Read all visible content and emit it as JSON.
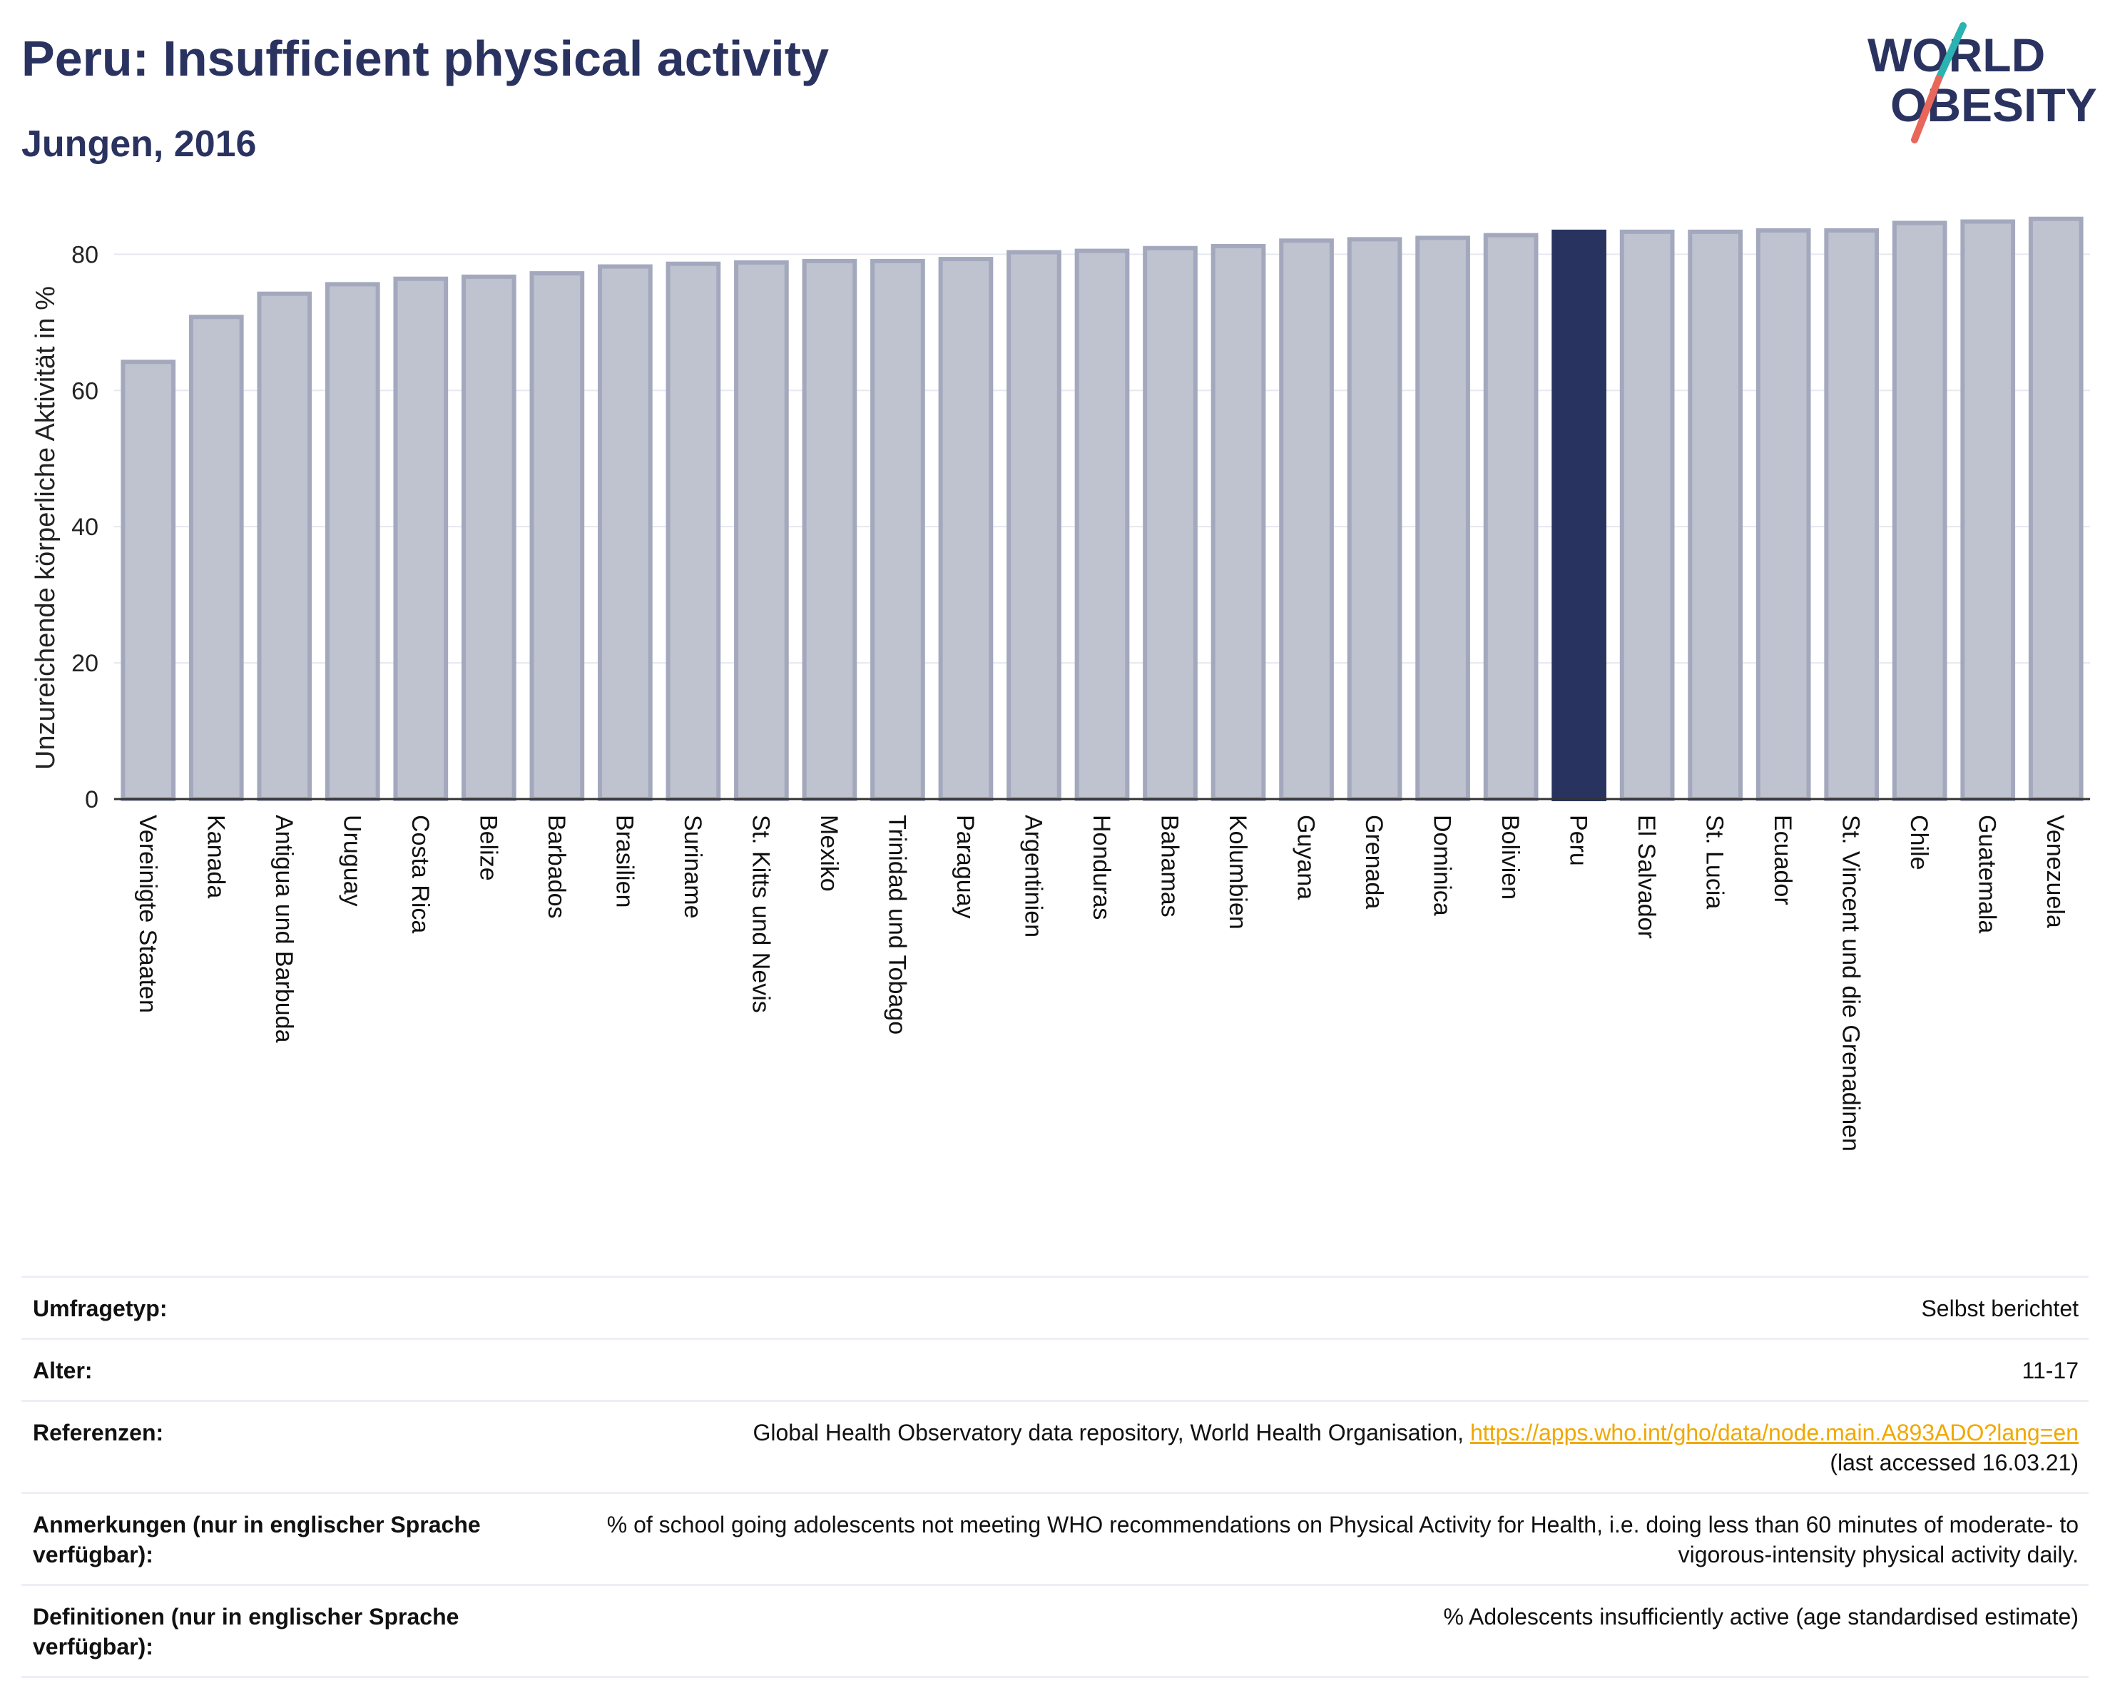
{
  "header": {
    "title": "Peru: Insufficient physical activity",
    "subtitle": "Jungen, 2016",
    "logo_top": "WORLD",
    "logo_bottom": "OBESITY"
  },
  "colors": {
    "title": "#2a3360",
    "bar": "#bfc2cf",
    "bar_stroke": "#a3a8bd",
    "highlight": "#283360",
    "link": "#f0a800",
    "logo_teal": "#2ab3b1",
    "logo_coral": "#e8675a"
  },
  "chart_data": {
    "type": "bar",
    "ylabel": "Unzureichende körperliche Aktivität in %",
    "ylim": [
      0,
      88
    ],
    "yticks": [
      0,
      20,
      40,
      60,
      80
    ],
    "grid": true,
    "highlight": "Peru",
    "categories": [
      "Vereinigte Staaten",
      "Kanada",
      "Antigua und Barbuda",
      "Uruguay",
      "Costa Rica",
      "Belize",
      "Barbados",
      "Brasilien",
      "Suriname",
      "St. Kitts und Nevis",
      "Mexiko",
      "Trinidad und Tobago",
      "Paraguay",
      "Argentinien",
      "Honduras",
      "Bahamas",
      "Kolumbien",
      "Guyana",
      "Grenada",
      "Dominica",
      "Bolivien",
      "Peru",
      "El Salvador",
      "St. Lucia",
      "Ecuador",
      "St. Vincent und die Grenadinen",
      "Chile",
      "Guatemala",
      "Venezuela"
    ],
    "values": [
      64.2,
      70.8,
      74.2,
      75.6,
      76.4,
      76.7,
      77.2,
      78.2,
      78.6,
      78.8,
      79.0,
      79.0,
      79.3,
      80.3,
      80.5,
      80.9,
      81.2,
      82.0,
      82.2,
      82.4,
      82.8,
      83.3,
      83.3,
      83.3,
      83.5,
      83.5,
      84.6,
      84.8,
      85.2
    ]
  },
  "meta": {
    "rows": [
      {
        "label": "Umfragetyp:",
        "value": "Selbst berichtet"
      },
      {
        "label": "Alter:",
        "value": "11-17"
      },
      {
        "label": "Referenzen:",
        "value": "Global Health Observatory data repository, World Health Organisation, ",
        "link": "https://apps.who.int/gho/data/node.main.A893ADO?lang=en",
        "value_after": "(last accessed 16.03.21)"
      },
      {
        "label": "Anmerkungen (nur in englischer Sprache verfügbar):",
        "value": "% of school going adolescents not meeting WHO recommendations on Physical Activity for Health, i.e. doing less than 60 minutes of moderate- to vigorous-intensity physical activity daily."
      },
      {
        "label": "Definitionen (nur in englischer Sprache verfügbar):",
        "value": "% Adolescents insufficiently active (age standardised estimate)"
      }
    ]
  }
}
